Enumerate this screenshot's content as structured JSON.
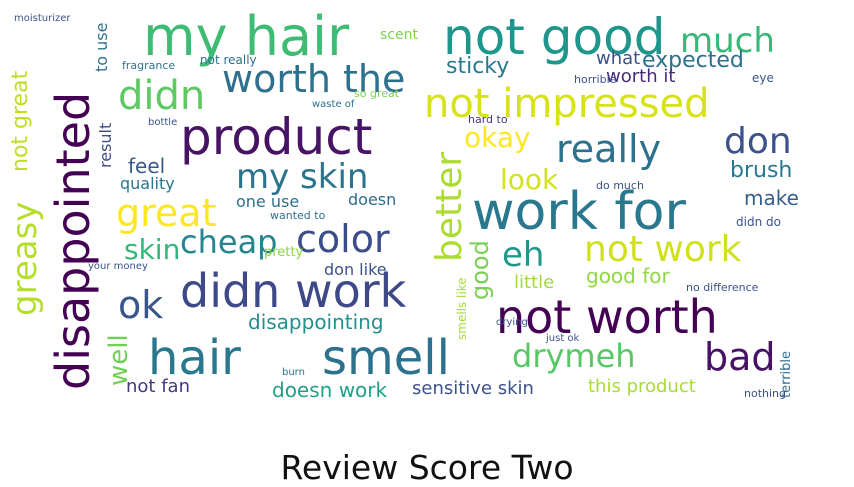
{
  "caption": "Review Score Two",
  "colors": {
    "background": "#ffffff",
    "caption": "#111111"
  },
  "words": [
    "my hair",
    "not good",
    "much",
    "disappointed",
    "worth the",
    "didn",
    "not impressed",
    "product",
    "really",
    "don",
    "work for",
    "better",
    "greasy",
    "not great",
    "okay",
    "look",
    "my skin",
    "great",
    "cheap",
    "color",
    "eh",
    "not work",
    "skin",
    "didn work",
    "ok",
    "not worth",
    "hair",
    "smell",
    "drymeh",
    "bad",
    "well",
    "not fan",
    "doesn work",
    "sensitive skin",
    "this product",
    "disappointing",
    "good",
    "little",
    "good for",
    "brush",
    "make",
    "sticky",
    "what",
    "expected",
    "worth it",
    "quality",
    "feel",
    "result",
    "to use",
    "scent",
    "one use",
    "doesn",
    "don like",
    "no difference",
    "terrible",
    "burn",
    "drying",
    "just ok",
    "fragrance",
    "not really",
    "moisturizer",
    "pretty",
    "hard to",
    "wanted to",
    "your money",
    "smells like",
    "nothing",
    "didn do",
    "eye",
    "bottle",
    "waste of",
    "so great",
    "horrible",
    "do much"
  ]
}
